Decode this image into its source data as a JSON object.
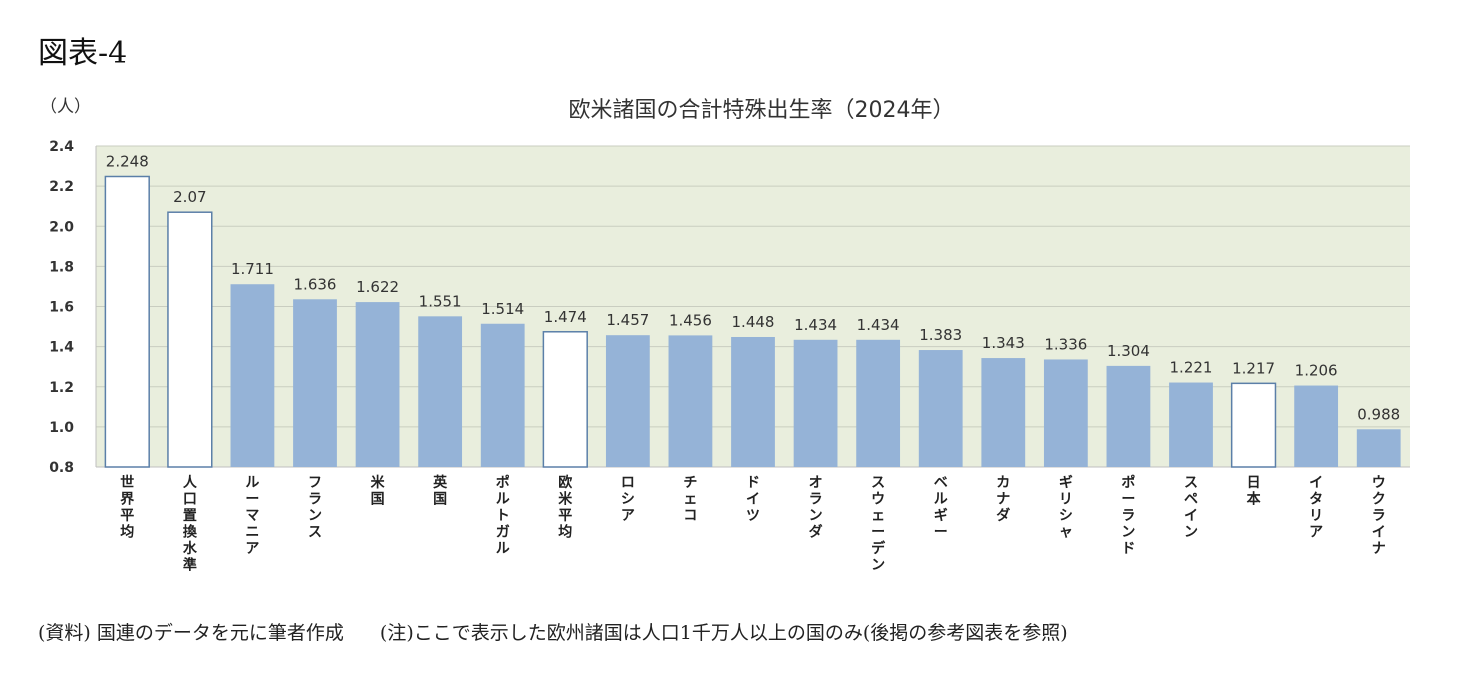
{
  "figure_label": "図表-4",
  "source_note": "(資料) 国連のデータを元に筆者作成",
  "footnote": "(注)ここで表示した欧州諸国は人口1千万人以上の国のみ(後掲の参考図表を参照)",
  "chart_data": {
    "type": "bar",
    "title": "欧米諸国の合計特殊出生率（2024年）",
    "ylabel": "（人）",
    "xlabel": "",
    "ylim": [
      0.8,
      2.4
    ],
    "yticks": [
      "0.8",
      "1.0",
      "1.2",
      "1.4",
      "1.6",
      "1.8",
      "2.0",
      "2.2",
      "2.4"
    ],
    "grid": true,
    "plot_background": "#e9eedd",
    "bar_color": "#95b3d7",
    "highlight_fill": "#ffffff",
    "highlight_stroke": "#5b7fa8",
    "categories": [
      "世界平均",
      "人口置換水準",
      "ルーマニア",
      "フランス",
      "米国",
      "英国",
      "ポルトガル",
      "欧米平均",
      "ロシア",
      "チェコ",
      "ドイツ",
      "オランダ",
      "スウェーデン",
      "ベルギー",
      "カナダ",
      "ギリシャ",
      "ポーランド",
      "スペイン",
      "日本",
      "イタリア",
      "ウクライナ"
    ],
    "values": [
      2.248,
      2.07,
      1.711,
      1.636,
      1.622,
      1.551,
      1.514,
      1.474,
      1.457,
      1.456,
      1.448,
      1.434,
      1.434,
      1.383,
      1.343,
      1.336,
      1.304,
      1.221,
      1.217,
      1.206,
      0.988
    ],
    "labels": [
      "2.248",
      "2.07",
      "1.711",
      "1.636",
      "1.622",
      "1.551",
      "1.514",
      "1.474",
      "1.457",
      "1.456",
      "1.448",
      "1.434",
      "1.434",
      "1.383",
      "1.343",
      "1.336",
      "1.304",
      "1.221",
      "1.217",
      "1.206",
      "0.988"
    ],
    "highlighted": [
      true,
      true,
      false,
      false,
      false,
      false,
      false,
      true,
      false,
      false,
      false,
      false,
      false,
      false,
      false,
      false,
      false,
      false,
      true,
      false,
      false
    ]
  }
}
